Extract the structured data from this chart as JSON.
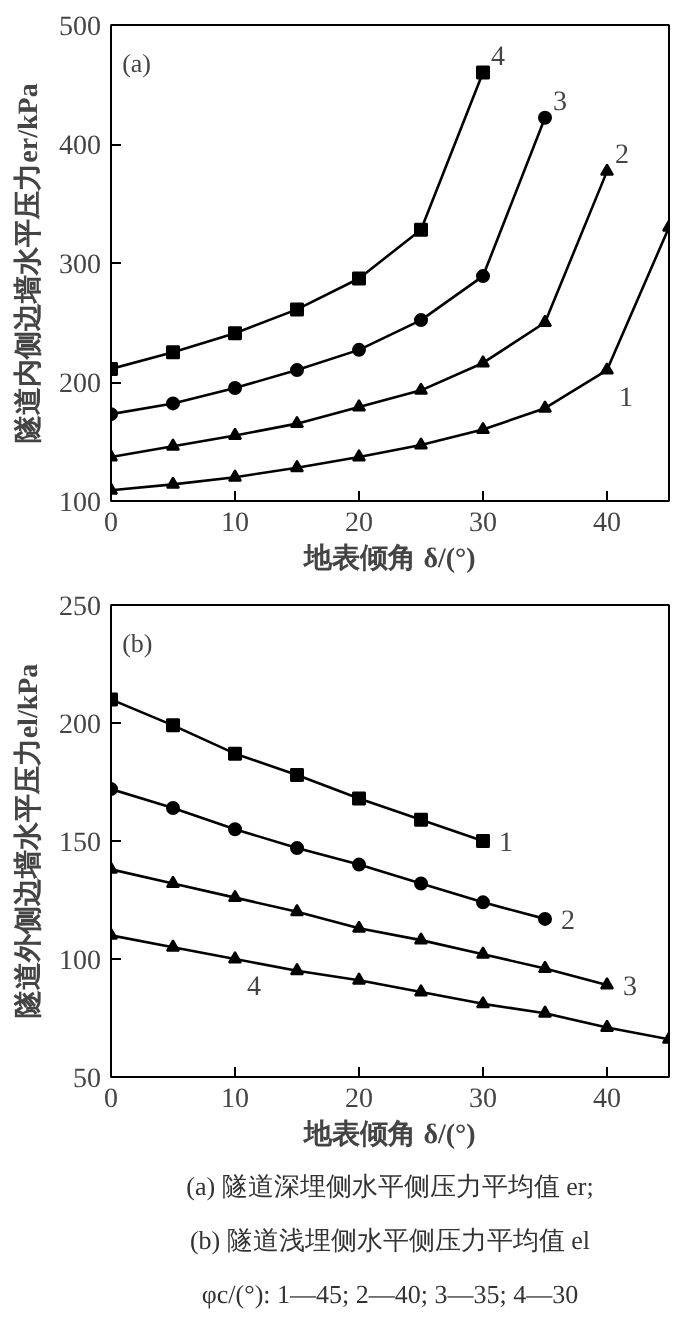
{
  "chart_data": [
    {
      "type": "line",
      "xlabel": "地表倾角 δ/(°)",
      "ylabel": "隧道内侧边墙水平压力er/kPa",
      "xlim": [
        0,
        45
      ],
      "ylim": [
        100,
        500
      ],
      "xticks": [
        0,
        10,
        20,
        30,
        40
      ],
      "yticks": [
        100,
        200,
        300,
        400,
        500
      ],
      "grid": false,
      "series": [
        {
          "color": "#000000",
          "marker": "triangle",
          "x": [
            0,
            5,
            10,
            15,
            20,
            25,
            30,
            35,
            40,
            45
          ],
          "values": [
            109,
            114,
            120,
            128,
            137,
            147,
            160,
            178,
            210,
            330
          ]
        },
        {
          "color": "#000000",
          "marker": "triangle",
          "x": [
            0,
            5,
            10,
            15,
            20,
            25,
            30,
            35,
            40
          ],
          "values": [
            137,
            146,
            155,
            165,
            179,
            193,
            216,
            250,
            377
          ]
        },
        {
          "color": "#000000",
          "marker": "circle",
          "x": [
            0,
            5,
            10,
            15,
            20,
            25,
            30,
            35
          ],
          "values": [
            173,
            182,
            195,
            210,
            227,
            252,
            289,
            422
          ]
        },
        {
          "color": "#000000",
          "marker": "square",
          "x": [
            0,
            5,
            10,
            15,
            20,
            25,
            30
          ],
          "values": [
            211,
            225,
            241,
            261,
            287,
            328,
            460
          ]
        }
      ],
      "annotations": [
        "(a)",
        {
          "text": "4",
          "x": 30,
          "y": 460
        },
        {
          "text": "3",
          "x": 35,
          "y": 422
        },
        {
          "text": "2",
          "x": 40,
          "y": 377
        },
        {
          "text": "1",
          "x": 40,
          "y": 210
        }
      ]
    },
    {
      "type": "line",
      "xlabel": "地表倾角 δ/(°)",
      "ylabel": "隧道外侧边墙水平压力el/kPa",
      "xlim": [
        0,
        45
      ],
      "ylim": [
        50,
        250
      ],
      "xticks": [
        0,
        10,
        20,
        30,
        40
      ],
      "yticks": [
        50,
        100,
        150,
        200,
        250
      ],
      "grid": false,
      "series": [
        {
          "color": "#000000",
          "marker": "square",
          "x": [
            0,
            5,
            10,
            15,
            20,
            25,
            30
          ],
          "values": [
            210,
            199,
            187,
            178,
            168,
            159,
            150
          ]
        },
        {
          "color": "#000000",
          "marker": "circle",
          "x": [
            0,
            5,
            10,
            15,
            20,
            25,
            30,
            35
          ],
          "values": [
            172,
            164,
            155,
            147,
            140,
            132,
            124,
            117
          ]
        },
        {
          "color": "#000000",
          "marker": "triangle",
          "x": [
            0,
            5,
            10,
            15,
            20,
            25,
            30,
            35,
            40
          ],
          "values": [
            138,
            132,
            126,
            120,
            113,
            108,
            102,
            96,
            89
          ]
        },
        {
          "color": "#000000",
          "marker": "triangle",
          "x": [
            0,
            5,
            10,
            15,
            20,
            25,
            30,
            35,
            40,
            45
          ],
          "values": [
            110,
            105,
            100,
            95,
            91,
            86,
            81,
            77,
            71,
            66
          ]
        }
      ],
      "annotations": [
        "(b)",
        {
          "text": "1",
          "x": 30,
          "y": 150
        },
        {
          "text": "2",
          "x": 35,
          "y": 117
        },
        {
          "text": "3",
          "x": 40,
          "y": 89
        },
        {
          "text": "4",
          "x": 10,
          "y": 100
        },
        "(a) 隧道深埋侧水平侧压力平均值 er;",
        "(b) 隧道浅埋侧水平侧压力平均值 el",
        "φc/(°): 1—45; 2—40; 3—35; 4—30"
      ]
    }
  ]
}
